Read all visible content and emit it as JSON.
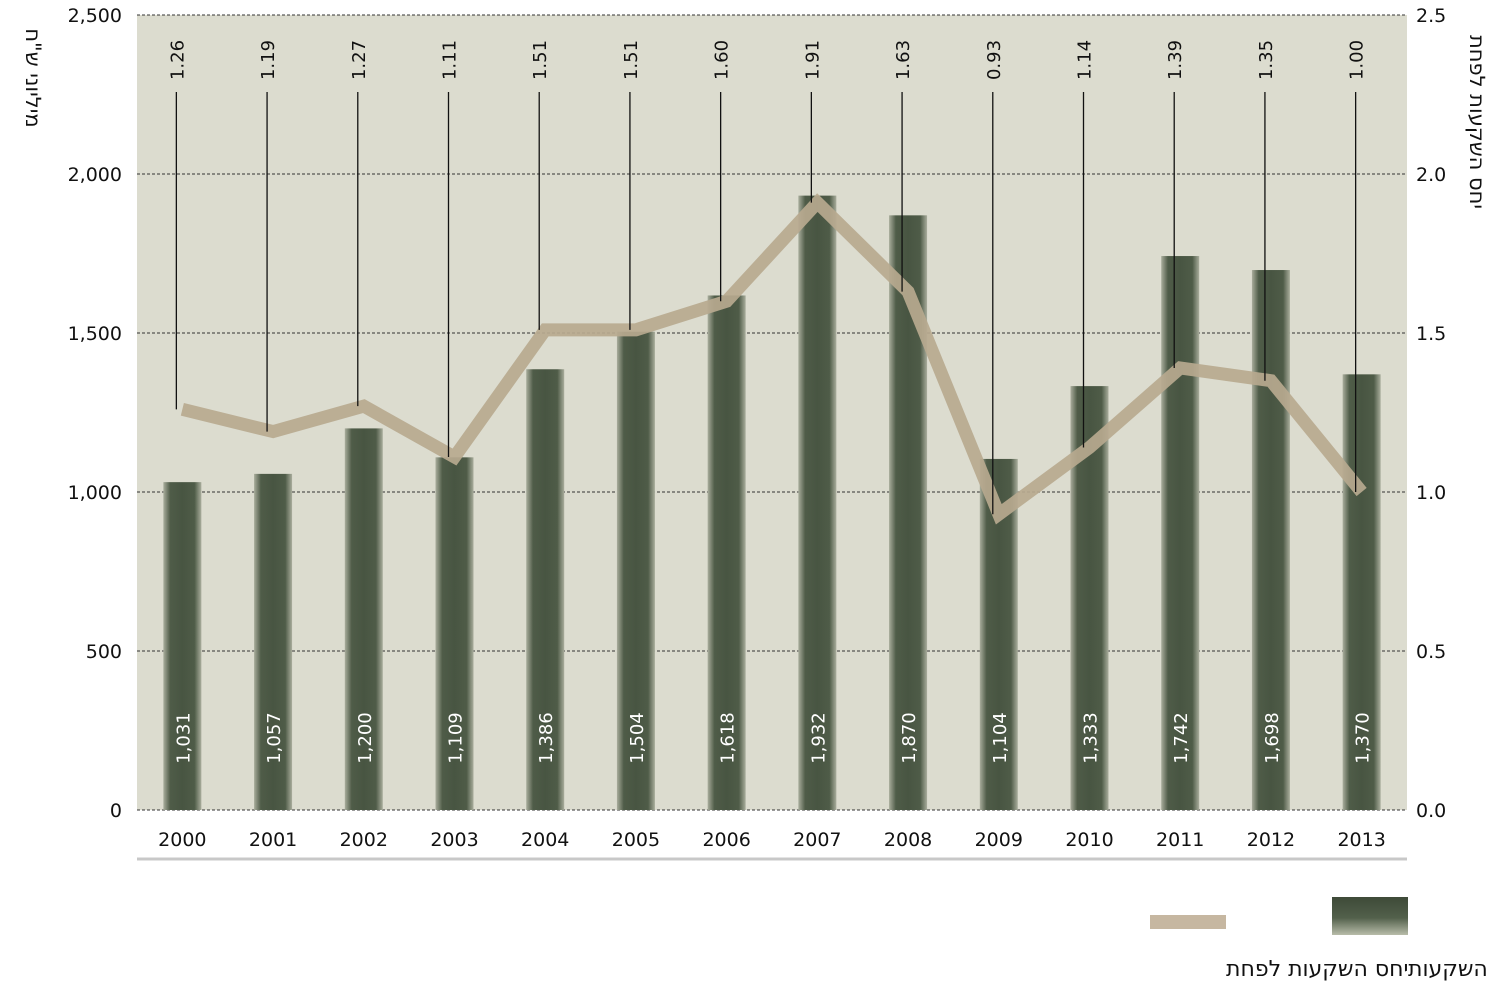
{
  "chart_data": {
    "type": "bar",
    "categories": [
      "2000",
      "2001",
      "2002",
      "2003",
      "2004",
      "2005",
      "2006",
      "2007",
      "2008",
      "2009",
      "2010",
      "2011",
      "2012",
      "2013"
    ],
    "series": [
      {
        "name": "השקעות",
        "type": "bar",
        "axis": "left",
        "values": [
          1031,
          1057,
          1200,
          1109,
          1386,
          1504,
          1618,
          1932,
          1870,
          1104,
          1333,
          1742,
          1698,
          1370
        ],
        "labels": [
          "1,031",
          "1,057",
          "1,200",
          "1,109",
          "1,386",
          "1,504",
          "1,618",
          "1,932",
          "1,870",
          "1,104",
          "1,333",
          "1,742",
          "1,698",
          "1,370"
        ],
        "color": "#4d5a47"
      },
      {
        "name": "יחס השקעות לפחת",
        "type": "line",
        "axis": "right",
        "values": [
          1.26,
          1.19,
          1.27,
          1.11,
          1.51,
          1.51,
          1.6,
          1.91,
          1.63,
          0.93,
          1.14,
          1.39,
          1.35,
          1.0
        ],
        "labels": [
          "1.26",
          "1.19",
          "1.27",
          "1.11",
          "1.51",
          "1.51",
          "1.60",
          "1.91",
          "1.63",
          "0.93",
          "1.14",
          "1.39",
          "1.35",
          "1.00"
        ],
        "color": "#b7a98f"
      }
    ],
    "left_axis": {
      "title": "מיליוני ש\"ח",
      "range": [
        0,
        2500
      ],
      "ticks": [
        0,
        500,
        1000,
        1500,
        2000,
        2500
      ],
      "tick_labels": [
        "0",
        "500",
        "1,000",
        "1,500",
        "2,000",
        "2,500"
      ]
    },
    "right_axis": {
      "title": "יחס השקעות לפחת",
      "range": [
        0,
        2.5
      ],
      "ticks": [
        0,
        0.5,
        1,
        1.5,
        2,
        2.5
      ],
      "tick_labels": [
        "0.0",
        "0.5",
        "1.0",
        "1.5",
        "2.0",
        "2.5"
      ]
    },
    "grid": true,
    "plot_background": "#dcdccf",
    "legend": {
      "position": "bottom-right"
    }
  }
}
